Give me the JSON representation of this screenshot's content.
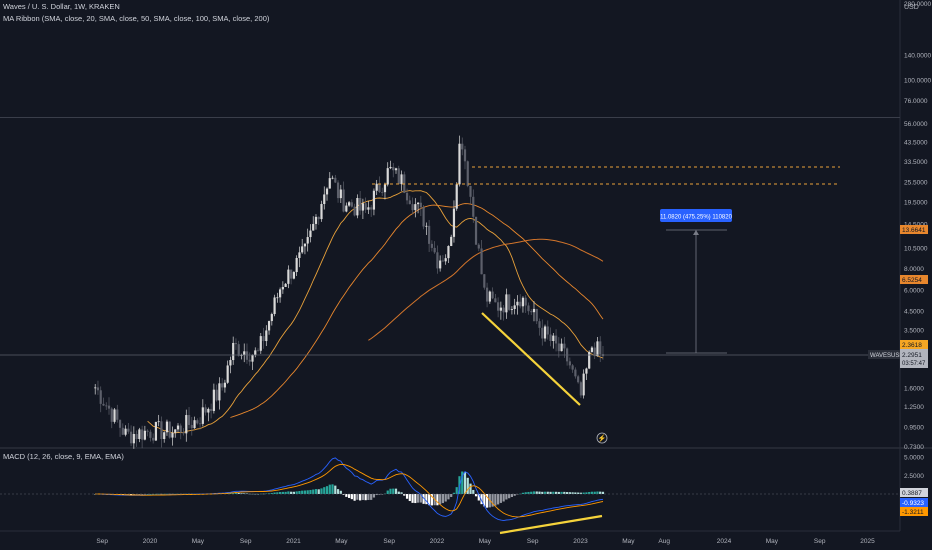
{
  "header": {
    "title": "Waves / U. S. Dollar, 1W, KRAKEN",
    "indicator": "MA Ribbon (SMA, close, 20, SMA, close, 50, SMA, close, 100, SMA, close, 200)",
    "macd_label": "MACD (12, 26, close, 9, EMA, EMA)"
  },
  "price_axis": {
    "currency": "USD",
    "ticks": [
      "280.0000",
      "140.0000",
      "100.0000",
      "76.0000",
      "56.0000",
      "43.5000",
      "33.5000",
      "25.5000",
      "19.5000",
      "14.5000",
      "10.5000",
      "8.0000",
      "6.0000",
      "4.5000",
      "3.5000",
      "2.5000",
      "1.6000",
      "1.2500",
      "0.9500",
      "0.7300"
    ]
  },
  "macd_axis": {
    "ticks": [
      "5.0000",
      "2.5000",
      "0.0000"
    ]
  },
  "time_axis": {
    "labels": [
      "Sep",
      "2020",
      "May",
      "Sep",
      "2021",
      "May",
      "Sep",
      "2022",
      "May",
      "Sep",
      "2023",
      "May",
      "Aug",
      "2024",
      "May",
      "Sep",
      "2025"
    ]
  },
  "badges": {
    "ma_orange_upper": "13.6641",
    "ma_orange_lower": "6.5254",
    "ma_yellow": "2.3618",
    "symbol": "WAVESUSD",
    "last_price": "2.2951",
    "countdown": "03:57:47",
    "macd_val": "0.3887",
    "macd_blue": "-0.9323",
    "macd_orange": "-1.3211"
  },
  "measure": {
    "label": "11.0820 (475.25%) 110820"
  },
  "chart_data": {
    "type": "candlestick",
    "title": "Waves / U. S. Dollar, 1W, KRAKEN",
    "y_scale": "log",
    "ylim": [
      0.65,
      450
    ],
    "x_range": [
      "2019-08",
      "2025-06"
    ],
    "colors": {
      "up": "#d9d9d9",
      "down": "#5d606b",
      "ma20": "#e8a13a",
      "ma50": "#e8872d",
      "ma100": "#d3752b",
      "ma200": "#c8651f",
      "trend": "#f5d33b",
      "macd": "#2962ff",
      "signal": "#ff9800"
    },
    "key_closes": [
      {
        "date": "2019-08",
        "close": 1.8
      },
      {
        "date": "2019-11",
        "close": 0.85
      },
      {
        "date": "2020-01",
        "close": 0.9
      },
      {
        "date": "2020-03",
        "close": 0.9
      },
      {
        "date": "2020-05",
        "close": 1.05
      },
      {
        "date": "2020-07",
        "close": 1.6
      },
      {
        "date": "2020-08",
        "close": 2.8
      },
      {
        "date": "2020-10",
        "close": 2.5
      },
      {
        "date": "2020-12",
        "close": 6.5
      },
      {
        "date": "2021-02",
        "close": 10.0
      },
      {
        "date": "2021-04",
        "close": 28
      },
      {
        "date": "2021-05",
        "close": 20
      },
      {
        "date": "2021-07",
        "close": 17
      },
      {
        "date": "2021-09",
        "close": 30
      },
      {
        "date": "2021-10",
        "close": 26
      },
      {
        "date": "2021-12",
        "close": 15
      },
      {
        "date": "2022-01",
        "close": 9
      },
      {
        "date": "2022-02",
        "close": 10
      },
      {
        "date": "2022-03",
        "close": 50
      },
      {
        "date": "2022-04",
        "close": 17
      },
      {
        "date": "2022-05",
        "close": 5.5
      },
      {
        "date": "2022-06",
        "close": 4.8
      },
      {
        "date": "2022-08",
        "close": 5.5
      },
      {
        "date": "2022-10",
        "close": 3.3
      },
      {
        "date": "2022-12",
        "close": 2.3
      },
      {
        "date": "2023-01",
        "close": 1.4
      },
      {
        "date": "2023-02",
        "close": 2.9
      },
      {
        "date": "2023-03",
        "close": 2.2951
      }
    ],
    "horizontal_lines": [
      {
        "price": 33.5,
        "style": "dashed"
      },
      {
        "price": 25.5,
        "style": "dashed"
      },
      {
        "price": 2.2951,
        "style": "solid"
      }
    ],
    "macd": {
      "macd_last": -0.9323,
      "signal_last": -1.3211,
      "histogram_last": 0.3887
    }
  }
}
